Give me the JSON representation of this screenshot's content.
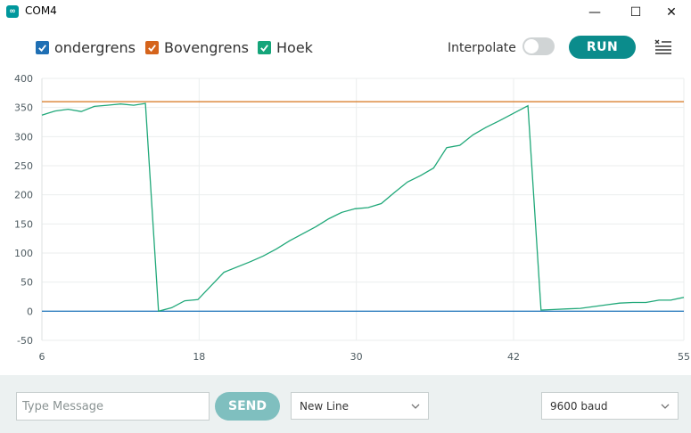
{
  "window": {
    "title": "COM4",
    "app_icon": "∞",
    "minimize": "—",
    "maximize": "☐",
    "close": "✕"
  },
  "legend": [
    {
      "label": "ondergrens",
      "color": "#1f6fb4",
      "checked": true
    },
    {
      "label": "Bovengrens",
      "color": "#d5641c",
      "checked": true
    },
    {
      "label": "Hoek",
      "color": "#15a57a",
      "checked": true
    }
  ],
  "toolbar": {
    "interpolate_label": "Interpolate",
    "interpolate_on": false,
    "run_label": "RUN"
  },
  "bottom": {
    "message_placeholder": "Type Message",
    "send_label": "SEND",
    "line_ending": "New Line",
    "baud": "9600 baud"
  },
  "chart_data": {
    "type": "line",
    "x_ticks": [
      "6",
      "18",
      "30",
      "42",
      "55"
    ],
    "y_ticks": [
      "400",
      "350",
      "300",
      "250",
      "200",
      "150",
      "100",
      "50",
      "0",
      "-50"
    ],
    "xlim": [
      6,
      55
    ],
    "ylim": [
      -50,
      400
    ],
    "grid": true,
    "series": [
      {
        "name": "ondergrens",
        "color": "#2f7ebf",
        "x": [
          6,
          55
        ],
        "values": [
          0,
          0
        ]
      },
      {
        "name": "Bovengrens",
        "color": "#d5741c",
        "x": [
          6,
          55
        ],
        "values": [
          360,
          360
        ]
      },
      {
        "name": "Hoek",
        "color": "#20a879",
        "x": [
          6,
          7,
          8,
          9,
          10,
          11,
          12,
          13,
          13.9,
          14.9,
          15.9,
          16.9,
          17.9,
          19.9,
          21.9,
          22.9,
          23.9,
          24.9,
          25.9,
          26.9,
          27.9,
          28.9,
          29.9,
          30.9,
          31.9,
          32.9,
          33.9,
          34.9,
          35.9,
          36.9,
          37.9,
          38.9,
          39.9,
          40.9,
          41.9,
          43.1,
          44.1,
          45.1,
          46.1,
          47.1,
          48.1,
          49.1,
          50.1,
          51.1,
          52.1,
          53.1,
          54,
          55
        ],
        "values": [
          337,
          344,
          347,
          343,
          352,
          354,
          356,
          354,
          357,
          0,
          6,
          18,
          20,
          67,
          85,
          95,
          107,
          121,
          133,
          145,
          159,
          170,
          176,
          178,
          185,
          204,
          222,
          233,
          246,
          281,
          285,
          303,
          316,
          327,
          339,
          353,
          2,
          3,
          4,
          5,
          8,
          11,
          14,
          15,
          15,
          19,
          19,
          24
        ]
      }
    ]
  }
}
